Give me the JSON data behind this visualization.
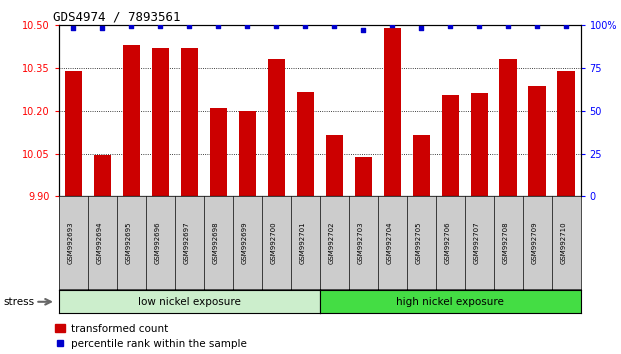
{
  "title": "GDS4974 / 7893561",
  "samples": [
    "GSM992693",
    "GSM992694",
    "GSM992695",
    "GSM992696",
    "GSM992697",
    "GSM992698",
    "GSM992699",
    "GSM992700",
    "GSM992701",
    "GSM992702",
    "GSM992703",
    "GSM992704",
    "GSM992705",
    "GSM992706",
    "GSM992707",
    "GSM992708",
    "GSM992709",
    "GSM992710"
  ],
  "transformed_count": [
    10.34,
    10.045,
    10.43,
    10.42,
    10.42,
    10.21,
    10.2,
    10.38,
    10.265,
    10.115,
    10.038,
    10.49,
    10.115,
    10.255,
    10.26,
    10.38,
    10.285,
    10.34
  ],
  "percentile_rank": [
    98,
    98,
    99,
    99,
    99,
    99,
    99,
    99,
    99,
    99,
    97,
    100,
    98,
    99,
    99,
    99,
    99,
    99
  ],
  "ylim_left": [
    9.9,
    10.5
  ],
  "ylim_right": [
    0,
    100
  ],
  "yticks_left": [
    9.9,
    10.05,
    10.2,
    10.35,
    10.5
  ],
  "yticks_right": [
    0,
    25,
    50,
    75,
    100
  ],
  "ytick_labels_right": [
    "0",
    "25",
    "50",
    "75",
    "100%"
  ],
  "grid_lines": [
    10.05,
    10.2,
    10.35
  ],
  "bar_color": "#cc0000",
  "dot_color": "#0000cc",
  "bar_width": 0.6,
  "low_nickel_count": 9,
  "high_nickel_count": 9,
  "low_group_label": "low nickel exposure",
  "high_group_label": "high nickel exposure",
  "stress_label": "stress",
  "legend_bar_label": "transformed count",
  "legend_dot_label": "percentile rank within the sample",
  "bg_plot": "#ffffff",
  "bg_low": "#cceecc",
  "bg_high": "#44dd44",
  "title_fontsize": 9,
  "tick_fontsize": 7,
  "label_fontsize": 7.5,
  "xtick_box_color": "#cccccc"
}
